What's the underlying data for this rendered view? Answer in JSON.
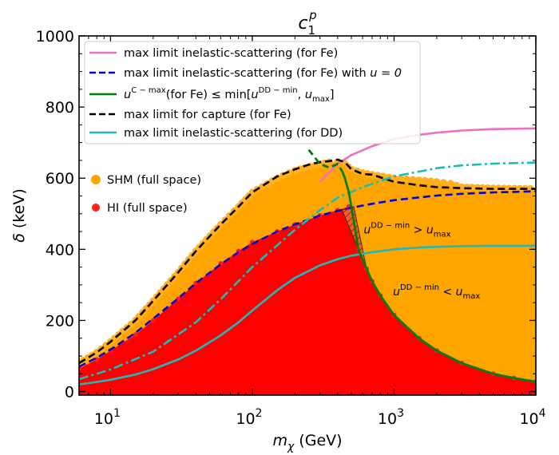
{
  "chart_data": {
    "type": "scatter",
    "title_main": "c",
    "title_sub": "1",
    "title_sup": "p",
    "xlabel_symbol": "m",
    "xlabel_sub": "χ",
    "xlabel_unit": " (GeV)",
    "ylabel_symbol": "δ",
    "ylabel_unit": " (keV)",
    "xscale": "log",
    "xlim": [
      6,
      10000
    ],
    "ylim": [
      -10,
      1000
    ],
    "yticks": [
      0,
      200,
      400,
      600,
      800,
      1000
    ],
    "xtick_base": "10",
    "xtick_exponents": [
      "1",
      "2",
      "3",
      "4"
    ],
    "colors": {
      "shm": "#ffa500",
      "hi": "#ff0000",
      "pink": "#f070c0",
      "blue": "#0000dd",
      "green": "#008000",
      "black": "#000000",
      "cyan": "#20b8b8",
      "hatch": "#cc2200"
    },
    "legend": [
      {
        "id": "pink",
        "label": "max limit inelastic-scattering (for Fe)",
        "style": "solid"
      },
      {
        "id": "blue",
        "label": "max limit inelastic-scattering (for Fe) with ",
        "math": "u = 0",
        "style": "dashed"
      },
      {
        "id": "green",
        "label_u": "u",
        "label_sup": "C − max",
        "label_rest": "(for Fe)  ≤ min[",
        "label_u2": "u",
        "label_sup2": "DD − min",
        "label_mid": ", ",
        "label_u3": "u",
        "label_sub3": "max",
        "label_end": "]",
        "style": "solid"
      },
      {
        "id": "black",
        "label": "max limit for capture (for Fe)",
        "style": "dashed"
      },
      {
        "id": "cyan",
        "label": "max limit inelastic-scattering (for DD)",
        "style": "solid"
      }
    ],
    "scatter_legend": [
      {
        "id": "shm",
        "label": "SHM (full space)"
      },
      {
        "id": "hi",
        "label": "HI (full space)"
      }
    ],
    "annotations": [
      {
        "u": "u",
        "sup": "DD − min",
        "rel": " > ",
        "u2": "u",
        "sub": "max",
        "x": 900,
        "y": 445
      },
      {
        "u": "u",
        "sup": "DD − min",
        "rel": " < ",
        "u2": "u",
        "sub": "max",
        "x": 1450,
        "y": 270
      }
    ],
    "series": [
      {
        "name": "max limit inelastic-scattering (for Fe)",
        "id": "pink",
        "x": [
          300,
          400,
          500,
          700,
          1000,
          1500,
          2000,
          3000,
          5000,
          7000,
          10000
        ],
        "y": [
          590,
          640,
          665,
          690,
          710,
          722,
          728,
          734,
          738,
          739,
          740
        ]
      },
      {
        "name": "max limit inelastic-scattering (for Fe) with u=0",
        "id": "blue",
        "x": [
          6,
          8,
          10,
          15,
          20,
          30,
          40,
          60,
          80,
          100,
          150,
          200,
          300,
          400,
          500,
          700,
          1000,
          1500,
          2000,
          3000,
          5000,
          10000
        ],
        "y": [
          70,
          95,
          118,
          165,
          205,
          262,
          305,
          358,
          392,
          415,
          450,
          470,
          495,
          508,
          517,
          528,
          538,
          546,
          551,
          556,
          560,
          563
        ]
      },
      {
        "name": "u C-max (for Fe) <= min[u DD-min, u max]",
        "id": "green",
        "x": [
          250,
          300,
          350,
          400,
          430,
          450,
          480,
          520,
          560,
          600,
          640,
          700,
          800,
          1000,
          1500,
          2000,
          3000,
          5000,
          7000,
          10000
        ],
        "y": [
          680,
          640,
          630,
          640,
          620,
          600,
          560,
          480,
          400,
          370,
          345,
          310,
          270,
          215,
          150,
          115,
          80,
          50,
          38,
          28
        ]
      },
      {
        "name": "max limit for capture (for Fe)",
        "id": "black",
        "x": [
          6,
          8,
          10,
          15,
          20,
          30,
          40,
          60,
          80,
          100,
          150,
          200,
          250,
          300,
          350,
          400,
          450,
          500,
          600,
          700,
          1000,
          1500,
          2000,
          3000,
          5000,
          10000
        ],
        "y": [
          80,
          110,
          140,
          200,
          255,
          335,
          395,
          470,
          520,
          560,
          605,
          625,
          638,
          645,
          648,
          652,
          645,
          625,
          612,
          610,
          590,
          580,
          575,
          572,
          570,
          570
        ]
      },
      {
        "name": "max limit inelastic-scattering (for DD)",
        "id": "cyan",
        "x": [
          6,
          8,
          10,
          15,
          20,
          30,
          40,
          60,
          80,
          100,
          150,
          200,
          300,
          400,
          500,
          700,
          1000,
          1500,
          2000,
          3000,
          5000,
          10000
        ],
        "y": [
          20,
          27,
          33,
          48,
          63,
          90,
          115,
          158,
          195,
          228,
          285,
          320,
          355,
          372,
          382,
          392,
          400,
          405,
          407,
          409,
          410,
          410
        ]
      },
      {
        "name": "dash-dot cyan",
        "id": "cyan",
        "x": [
          6,
          10,
          20,
          40,
          60,
          100,
          200,
          300,
          400,
          600,
          1000,
          2000,
          3000,
          5000,
          10000
        ],
        "y": [
          35,
          62,
          112,
          195,
          260,
          350,
          455,
          510,
          545,
          575,
          605,
          628,
          636,
          641,
          644
        ]
      },
      {
        "name": "SHM region upper",
        "id": "shm",
        "x": [
          6,
          8,
          10,
          15,
          20,
          30,
          40,
          60,
          80,
          100,
          150,
          200,
          300,
          350,
          400,
          450,
          500,
          600,
          700,
          1000,
          1500,
          2000,
          2500,
          3000,
          5000,
          10000
        ],
        "y": [
          80,
          110,
          140,
          200,
          255,
          335,
          395,
          470,
          520,
          560,
          600,
          622,
          640,
          645,
          645,
          640,
          625,
          615,
          610,
          600,
          595,
          590,
          585,
          575,
          572,
          570
        ]
      },
      {
        "name": "HI region upper",
        "id": "hi",
        "x": [
          6,
          8,
          10,
          15,
          20,
          30,
          40,
          60,
          80,
          100,
          150,
          200,
          300,
          400,
          480,
          520,
          560,
          600,
          640,
          700,
          800,
          1000,
          1500,
          2000,
          3000,
          5000,
          7000,
          10000
        ],
        "y": [
          65,
          90,
          115,
          160,
          200,
          260,
          305,
          360,
          395,
          420,
          450,
          470,
          495,
          510,
          520,
          480,
          400,
          370,
          345,
          310,
          270,
          215,
          150,
          115,
          80,
          50,
          38,
          28
        ]
      }
    ]
  }
}
